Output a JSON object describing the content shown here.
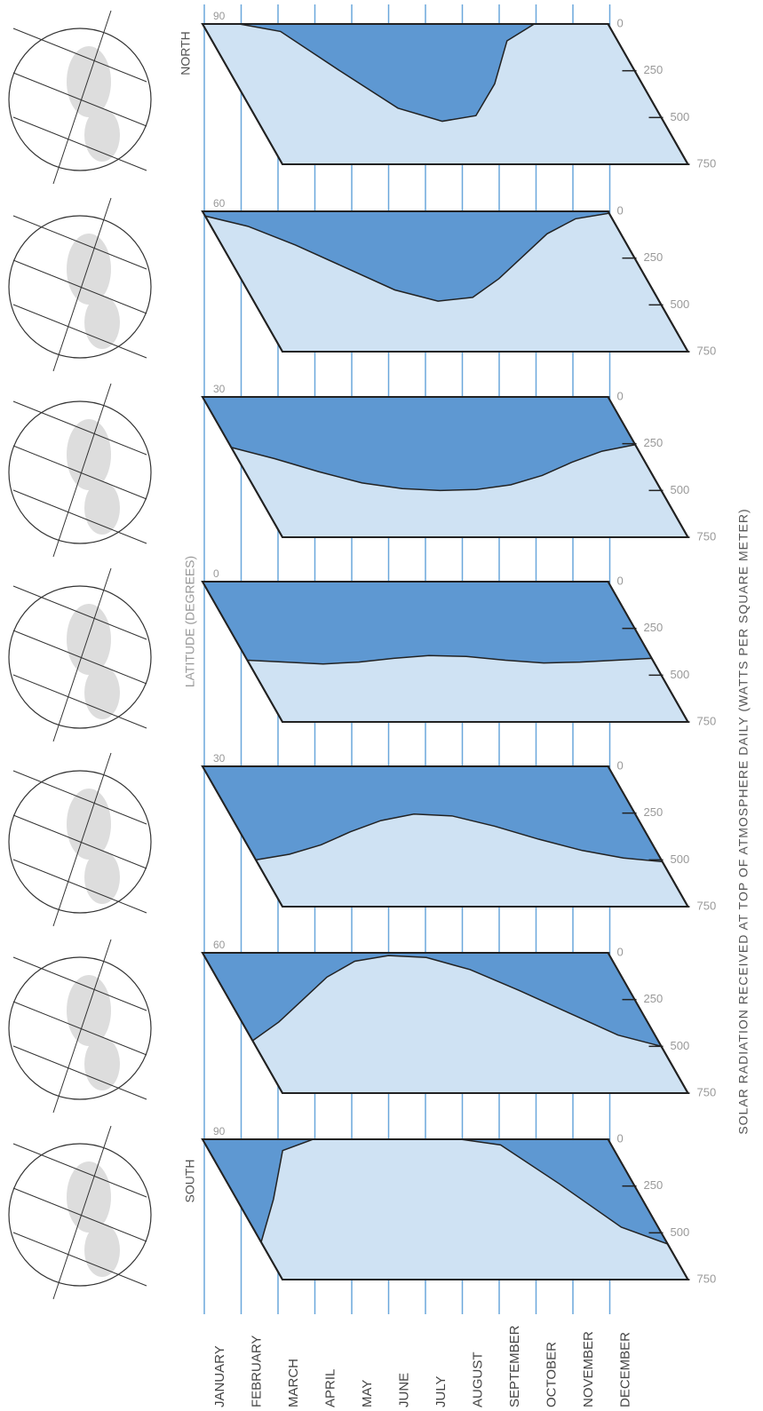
{
  "labels": {
    "north": "NORTH",
    "south": "SOUTH",
    "latitude_axis": "LATITUDE (DEGREES)",
    "value_axis": "SOLAR RADIATION RECEIVED AT TOP OF ATMOSPHERE DAILY (WATTS PER SQUARE METER)"
  },
  "chart_data": [
    {
      "type": "area",
      "title": "90",
      "categories": [
        "JANUARY",
        "FEBRUARY",
        "MARCH",
        "APRIL",
        "MAY",
        "JUNE",
        "JULY",
        "AUGUST",
        "SEPTEMBER",
        "OCTOBER",
        "NOVEMBER",
        "DECEMBER"
      ],
      "values": [
        0,
        0,
        40,
        250,
        450,
        520,
        490,
        320,
        90,
        0,
        0,
        0
      ],
      "color": "#5e98d2",
      "ylim": [
        0,
        750
      ],
      "yticks": [
        0,
        250,
        500,
        750
      ]
    },
    {
      "type": "area",
      "title": "60",
      "categories": [
        "JANUARY",
        "FEBRUARY",
        "MARCH",
        "APRIL",
        "MAY",
        "JUNE",
        "JULY",
        "AUGUST",
        "SEPTEMBER",
        "OCTOBER",
        "NOVEMBER",
        "DECEMBER"
      ],
      "values": [
        25,
        80,
        180,
        300,
        420,
        480,
        460,
        360,
        240,
        120,
        40,
        10
      ],
      "color": "#5e98d2",
      "ylim": [
        0,
        750
      ],
      "yticks": [
        0,
        250,
        500,
        750
      ]
    },
    {
      "type": "area",
      "title": "30",
      "categories": [
        "JANUARY",
        "FEBRUARY",
        "MARCH",
        "APRIL",
        "MAY",
        "JUNE",
        "JULY",
        "AUGUST",
        "SEPTEMBER",
        "OCTOBER",
        "NOVEMBER",
        "DECEMBER"
      ],
      "values": [
        270,
        330,
        400,
        460,
        490,
        500,
        495,
        470,
        420,
        350,
        290,
        255
      ],
      "color": "#5e98d2",
      "ylim": [
        0,
        750
      ],
      "yticks": [
        0,
        250,
        500,
        750
      ]
    },
    {
      "type": "area",
      "title": "0",
      "categories": [
        "JANUARY",
        "FEBRUARY",
        "MARCH",
        "APRIL",
        "MAY",
        "JUNE",
        "JULY",
        "AUGUST",
        "SEPTEMBER",
        "OCTOBER",
        "NOVEMBER",
        "DECEMBER"
      ],
      "values": [
        420,
        430,
        440,
        430,
        410,
        395,
        400,
        420,
        435,
        430,
        420,
        410
      ],
      "color": "#5e98d2",
      "ylim": [
        0,
        750
      ],
      "yticks": [
        0,
        250,
        500,
        750
      ]
    },
    {
      "type": "area",
      "title": "30",
      "categories": [
        "JANUARY",
        "FEBRUARY",
        "MARCH",
        "APRIL",
        "MAY",
        "JUNE",
        "JULY",
        "AUGUST",
        "SEPTEMBER",
        "OCTOBER",
        "NOVEMBER",
        "DECEMBER"
      ],
      "values": [
        500,
        470,
        420,
        350,
        290,
        255,
        265,
        320,
        390,
        450,
        490,
        510
      ],
      "color": "#5e98d2",
      "ylim": [
        0,
        750
      ],
      "yticks": [
        0,
        250,
        500,
        750
      ]
    },
    {
      "type": "area",
      "title": "60",
      "categories": [
        "JANUARY",
        "FEBRUARY",
        "MARCH",
        "APRIL",
        "MAY",
        "JUNE",
        "JULY",
        "AUGUST",
        "SEPTEMBER",
        "OCTOBER",
        "NOVEMBER",
        "DECEMBER"
      ],
      "values": [
        470,
        370,
        250,
        130,
        45,
        15,
        25,
        90,
        200,
        320,
        440,
        500
      ],
      "color": "#5e98d2",
      "ylim": [
        0,
        750
      ],
      "yticks": [
        0,
        250,
        500,
        750
      ]
    },
    {
      "type": "area",
      "title": "90",
      "categories": [
        "JANUARY",
        "FEBRUARY",
        "MARCH",
        "APRIL",
        "MAY",
        "JUNE",
        "JULY",
        "AUGUST",
        "SEPTEMBER",
        "OCTOBER",
        "NOVEMBER",
        "DECEMBER"
      ],
      "values": [
        550,
        320,
        60,
        0,
        0,
        0,
        0,
        0,
        30,
        240,
        470,
        560
      ],
      "color": "#5e98d2",
      "ylim": [
        0,
        750
      ],
      "yticks": [
        0,
        250,
        500,
        750
      ]
    }
  ]
}
